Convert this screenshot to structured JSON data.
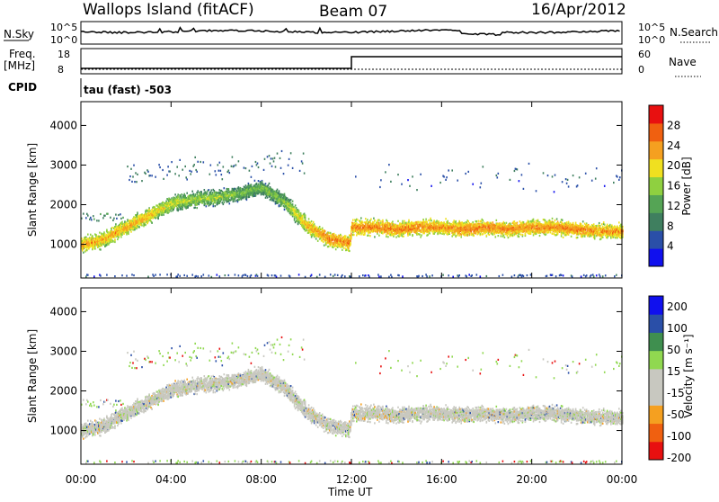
{
  "header": {
    "station": "Wallops Island (fitACF)",
    "beam": "Beam 07",
    "date": "16/Apr/2012"
  },
  "strip_noise": {
    "left_label": "N.Sky",
    "right_label": "N.Search",
    "left_ticks": [
      "10^5",
      "10^0"
    ],
    "right_ticks": [
      "10^5",
      "10^0"
    ]
  },
  "strip_freq": {
    "left_label_1": "Freq.",
    "left_label_2": "[MHz]",
    "left_ticks": [
      "18",
      "8"
    ],
    "right_label": "Nave",
    "right_ticks": [
      "60",
      "0"
    ],
    "cpid_label": "CPID",
    "cpid_value": "tau (fast) -503"
  },
  "colors": {
    "power": [
      "#1010ee",
      "#2a4fa8",
      "#3f7f5f",
      "#55a455",
      "#8fd040",
      "#f0e020",
      "#f5a020",
      "#f06010",
      "#e81010"
    ],
    "velocity": [
      "#e81010",
      "#f06010",
      "#f5a020",
      "#c8c8c0",
      "#c8c8c0",
      "#90d850",
      "#3f8f4f",
      "#2a4fa8",
      "#1010ee"
    ]
  },
  "chart_data": [
    {
      "type": "heatmap",
      "name": "power",
      "ylabel": "Slant Range [km]",
      "xlabel": "Time UT",
      "xlim_hours": [
        0,
        24
      ],
      "ylim_km": [
        150,
        4600
      ],
      "x_tick_labels": [
        "00:00",
        "04:00",
        "08:00",
        "12:00",
        "16:00",
        "20:00",
        "00:00"
      ],
      "x_tick_hours": [
        0,
        4,
        8,
        12,
        16,
        20,
        24
      ],
      "y_tick_labels": [
        "1000",
        "2000",
        "3000",
        "4000"
      ],
      "y_tick_values": [
        1000,
        2000,
        3000,
        4000
      ],
      "colorbar": {
        "label": "Power [dB]",
        "min": 0,
        "max": 32,
        "tick_labels": [
          "4",
          "8",
          "12",
          "16",
          "20",
          "24",
          "28"
        ],
        "tick_values": [
          4,
          8,
          12,
          16,
          20,
          24,
          28
        ]
      },
      "echo_band": {
        "hours": [
          0,
          1,
          2,
          3,
          4,
          5,
          6,
          7,
          8,
          9,
          10,
          11,
          11.9,
          12.0,
          13,
          14,
          15,
          16,
          17,
          18,
          19,
          20,
          21,
          22,
          23,
          24
        ],
        "center_km": [
          1000,
          1150,
          1450,
          1750,
          2050,
          2150,
          2200,
          2300,
          2450,
          2100,
          1500,
          1150,
          1050,
          1450,
          1450,
          1400,
          1450,
          1450,
          1400,
          1450,
          1400,
          1450,
          1450,
          1400,
          1350,
          1350
        ],
        "power_db": [
          26,
          26,
          26,
          25,
          22,
          20,
          20,
          18,
          18,
          19,
          26,
          28,
          28,
          28,
          28,
          28,
          28,
          27,
          28,
          28,
          28,
          27,
          28,
          28,
          27,
          27
        ]
      }
    },
    {
      "type": "heatmap",
      "name": "velocity",
      "ylabel": "Slant Range [km]",
      "xlabel": "Time UT",
      "xlim_hours": [
        0,
        24
      ],
      "ylim_km": [
        150,
        4600
      ],
      "x_tick_labels": [
        "00:00",
        "04:00",
        "08:00",
        "12:00",
        "16:00",
        "20:00",
        "00:00"
      ],
      "x_tick_hours": [
        0,
        4,
        8,
        12,
        16,
        20,
        24
      ],
      "y_tick_labels": [
        "1000",
        "2000",
        "3000",
        "4000"
      ],
      "y_tick_values": [
        1000,
        2000,
        3000,
        4000
      ],
      "colorbar": {
        "label": "Velocity [m s⁻¹]",
        "min": -250,
        "max": 250,
        "tick_labels": [
          "200",
          "100",
          "50",
          "15",
          "-15",
          "-50",
          "-100",
          "-200"
        ]
      }
    }
  ],
  "axis": {
    "xlabel": "Time UT",
    "x_tick_labels": [
      "00:00",
      "04:00",
      "08:00",
      "12:00",
      "16:00",
      "20:00",
      "00:00"
    ]
  }
}
